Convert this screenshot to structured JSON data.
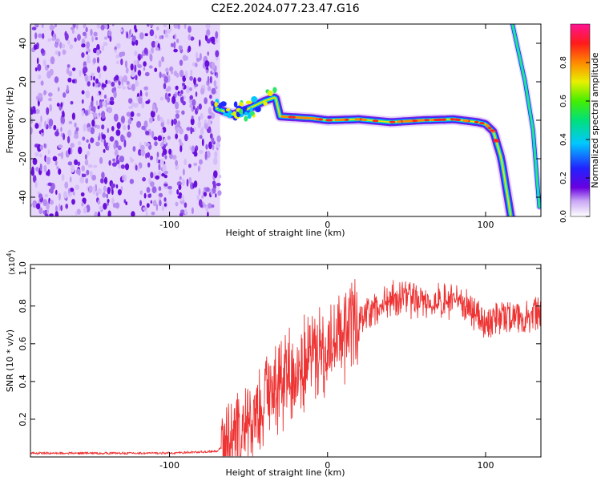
{
  "title": "C2E2.2024.077.23.47.G16",
  "chart_data": [
    {
      "type": "heatmap",
      "xlabel": "Height of straight line (km)",
      "ylabel": "Frequency (Hz)",
      "xlim": [
        -188,
        135
      ],
      "ylim": [
        -50,
        50
      ],
      "xticks": [
        -100,
        0,
        100
      ],
      "yticks": [
        -40,
        -20,
        0,
        20,
        40
      ],
      "colorbar": {
        "label": "Normalized spectral amplitude",
        "range": [
          0,
          1
        ],
        "ticks": [
          "0.0",
          "0.2",
          "0.4",
          "0.6",
          "0.8"
        ]
      },
      "noise_region": {
        "x_range": [
          -188,
          -68
        ],
        "amplitude": "0.1-0.3"
      },
      "signal_track": [
        {
          "x": -70,
          "y": 6
        },
        {
          "x": -60,
          "y": 3
        },
        {
          "x": -50,
          "y": 6
        },
        {
          "x": -40,
          "y": 10
        },
        {
          "x": -33,
          "y": 12
        },
        {
          "x": -30,
          "y": 2
        },
        {
          "x": -20,
          "y": 1.5
        },
        {
          "x": -10,
          "y": 1
        },
        {
          "x": 0,
          "y": 0
        },
        {
          "x": 20,
          "y": 0.5
        },
        {
          "x": 40,
          "y": -1
        },
        {
          "x": 60,
          "y": 0
        },
        {
          "x": 80,
          "y": 0.5
        },
        {
          "x": 95,
          "y": -1
        },
        {
          "x": 100,
          "y": -2
        },
        {
          "x": 105,
          "y": -6
        },
        {
          "x": 110,
          "y": -20
        },
        {
          "x": 116,
          "y": -50
        }
      ],
      "secondary_track": [
        {
          "x": 117,
          "y": 50
        },
        {
          "x": 125,
          "y": 20
        },
        {
          "x": 130,
          "y": -5
        },
        {
          "x": 134,
          "y": -45
        }
      ]
    },
    {
      "type": "line",
      "xlabel": "Height of straight line (km)",
      "ylabel": "SNR (10 * v/v)",
      "yscale_label": "(x10",
      "yscale_exp": "4",
      "yscale_close": ")",
      "xlim": [
        -188,
        135
      ],
      "ylim": [
        0,
        1.02
      ],
      "xticks": [
        -100,
        0,
        100
      ],
      "yticks": [
        "0.2",
        "0.4",
        "0.6",
        "0.8",
        "1.0"
      ],
      "color": "#ee3333",
      "series": [
        {
          "x": [
            -188,
            -150,
            -100,
            -70,
            -60,
            -50,
            -40,
            -30,
            -20,
            -10,
            0,
            10,
            20,
            30,
            40,
            50,
            60,
            70,
            80,
            90,
            95,
            100,
            110,
            120,
            135
          ],
          "y": [
            0.02,
            0.02,
            0.02,
            0.03,
            0.1,
            0.22,
            0.32,
            0.42,
            0.5,
            0.55,
            0.62,
            0.68,
            0.74,
            0.78,
            0.84,
            0.84,
            0.82,
            0.82,
            0.82,
            0.8,
            0.73,
            0.72,
            0.74,
            0.74,
            0.76
          ]
        }
      ]
    }
  ]
}
